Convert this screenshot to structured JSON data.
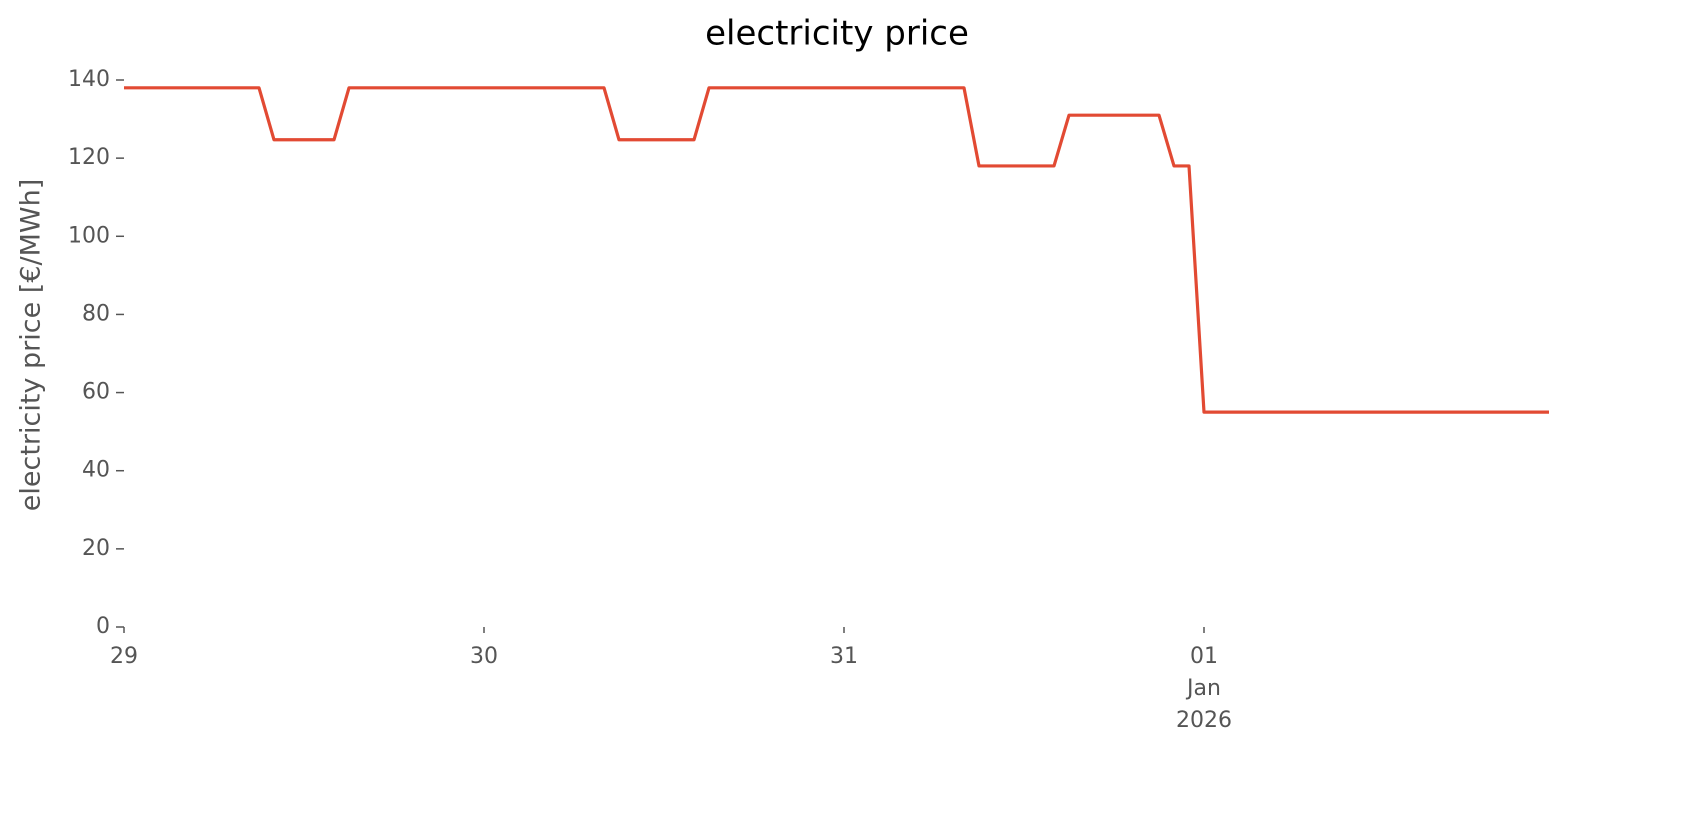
{
  "chart_data": {
    "type": "line",
    "title": "electricity price",
    "ylabel": "electricity price [€/MWh]",
    "x": [
      0,
      1,
      2,
      3,
      4,
      5,
      6,
      7,
      8,
      9,
      10,
      11,
      12,
      13,
      14,
      15,
      16,
      17,
      18,
      19,
      20,
      21,
      22,
      23,
      24,
      25,
      26,
      27,
      28,
      29,
      30,
      31,
      32,
      33,
      34,
      35,
      36,
      37,
      38,
      39,
      40,
      41,
      42,
      43,
      44,
      45,
      46,
      47,
      48,
      49,
      50,
      51,
      52,
      53,
      54,
      55,
      56,
      57,
      58,
      59,
      60,
      61,
      62,
      63,
      64,
      65,
      66,
      67,
      68,
      69,
      70,
      71,
      72,
      73,
      74,
      75,
      76,
      77,
      78,
      79,
      80,
      81,
      82,
      83,
      84,
      85,
      86,
      87,
      88,
      89,
      90,
      91,
      92,
      93,
      94,
      95
    ],
    "series": [
      {
        "name": "electricity price",
        "color": "#e24a33",
        "values": [
          138,
          138,
          138,
          138,
          138,
          138,
          138,
          138,
          138,
          138,
          124.7,
          124.7,
          124.7,
          124.7,
          124.7,
          138,
          138,
          138,
          138,
          138,
          138,
          138,
          138,
          138,
          138,
          138,
          138,
          138,
          138,
          138,
          138,
          138,
          138,
          124.7,
          124.7,
          124.7,
          124.7,
          124.7,
          124.7,
          138,
          138,
          138,
          138,
          138,
          138,
          138,
          138,
          138,
          138,
          138,
          138,
          138,
          138,
          138,
          138,
          138,
          138,
          118,
          118,
          118,
          118,
          118,
          118,
          131,
          131,
          131,
          131,
          131,
          131,
          131,
          118,
          118,
          55,
          55,
          55,
          55,
          55,
          55,
          55,
          55,
          55,
          55,
          55,
          55,
          55,
          55,
          55,
          55,
          55,
          55,
          55,
          55,
          55,
          55,
          55,
          55
        ]
      }
    ],
    "xlim": [
      0,
      95
    ],
    "xticks": [
      {
        "value": 0,
        "label": "29"
      },
      {
        "value": 24,
        "label": "30"
      },
      {
        "value": 48,
        "label": "31"
      },
      {
        "value": 72,
        "label": "01 Jan 2026"
      }
    ],
    "ylim": [
      0,
      140
    ],
    "yticks": [
      0,
      20,
      40,
      60,
      80,
      100,
      120,
      140
    ],
    "grid": false
  }
}
